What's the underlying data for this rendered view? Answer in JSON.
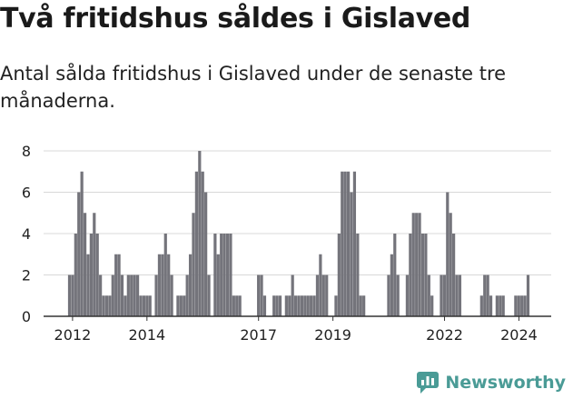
{
  "title": "Två fritidshus såldes i Gislaved",
  "subtitle": "Antal sålda fritidshus i Gislaved under de senaste tre månaderna.",
  "brand": {
    "name": "Newsworthy",
    "icon": "newsworthy-logo-icon",
    "color": "#4a9b96"
  },
  "colors": {
    "bar": "#74747b",
    "highlight": "#2a9d8f",
    "grid": "#d8d8d8",
    "axis": "#333333",
    "text": "#222222"
  },
  "chart_data": {
    "type": "bar",
    "title": "Två fritidshus såldes i Gislaved",
    "xlabel": "",
    "ylabel": "",
    "ylim": [
      0,
      8
    ],
    "yticks": [
      0,
      2,
      4,
      6,
      8
    ],
    "grid": true,
    "xtick_labels": [
      "2012",
      "2014",
      "2017",
      "2019",
      "2022",
      "2024"
    ],
    "xtick_positions": [
      2012,
      2014,
      2017,
      2019,
      2022,
      2024
    ],
    "x_start": 2011.917,
    "x_step": 0.0833,
    "values": [
      2,
      2,
      4,
      6,
      7,
      5,
      3,
      4,
      5,
      4,
      2,
      1,
      1,
      1,
      2,
      3,
      3,
      2,
      1,
      2,
      2,
      2,
      2,
      1,
      1,
      1,
      1,
      0,
      2,
      3,
      3,
      4,
      3,
      2,
      0,
      1,
      1,
      1,
      2,
      3,
      5,
      7,
      8,
      7,
      6,
      2,
      0,
      4,
      3,
      4,
      4,
      4,
      4,
      1,
      1,
      1,
      0,
      0,
      0,
      0,
      0,
      2,
      2,
      1,
      0,
      0,
      1,
      1,
      1,
      0,
      1,
      1,
      2,
      1,
      1,
      1,
      1,
      1,
      1,
      1,
      2,
      3,
      2,
      2,
      0,
      0,
      1,
      4,
      7,
      7,
      7,
      6,
      7,
      4,
      1,
      1,
      0,
      0,
      0,
      0,
      0,
      0,
      0,
      2,
      3,
      4,
      2,
      0,
      0,
      2,
      4,
      5,
      5,
      5,
      4,
      4,
      2,
      1,
      0,
      0,
      2,
      2,
      6,
      5,
      4,
      2,
      2,
      0,
      0,
      0,
      0,
      0,
      0,
      1,
      2,
      2,
      1,
      0,
      1,
      1,
      1,
      0,
      0,
      0,
      1,
      1,
      1,
      1,
      2
    ],
    "highlight_index": 149,
    "highlight_label": "2"
  }
}
